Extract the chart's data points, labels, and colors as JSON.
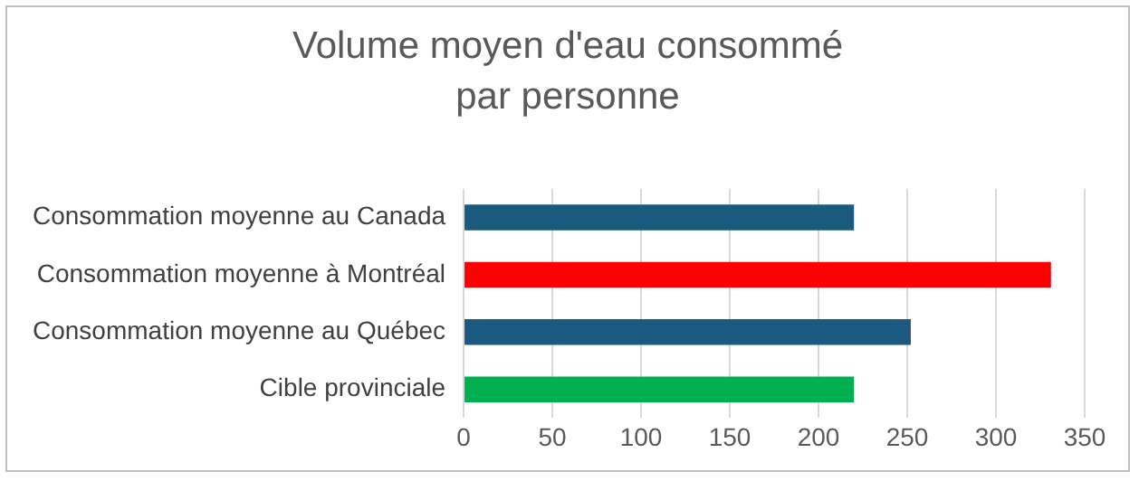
{
  "chart_data": {
    "type": "bar",
    "orientation": "horizontal",
    "title": "Volume moyen d'eau consommé par personne",
    "categories": [
      "Consommation moyenne au Canada",
      "Consommation moyenne à Montréal",
      "Consommation moyenne au Québec",
      "Cible provinciale"
    ],
    "values": [
      220,
      331,
      252,
      220
    ],
    "colors": [
      "#1a5a7e",
      "#ff0000",
      "#1a5a7e",
      "#00b050"
    ],
    "xlim": [
      0,
      350
    ],
    "xticks": [
      0,
      50,
      100,
      150,
      200,
      250,
      300,
      350
    ],
    "grid": "x"
  }
}
